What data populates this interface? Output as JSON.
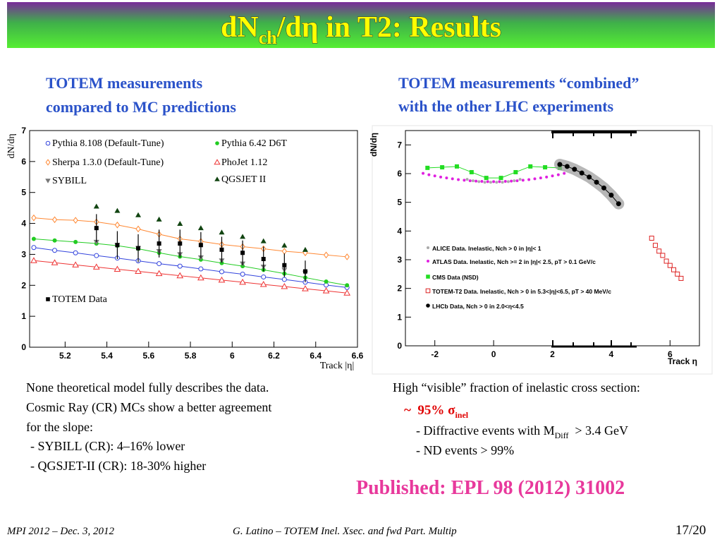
{
  "header": {
    "title": {
      "main": "dN",
      "sub": "ch",
      "rest": "/dη in T2: Results"
    }
  },
  "left_heading": [
    "TOTEM measurements",
    "compared to MC predictions"
  ],
  "right_heading": [
    "TOTEM measurements “combined”",
    "with the other LHC experiments"
  ],
  "chart_data": [
    {
      "type": "scatter",
      "xlabel": "Track |η|",
      "ylabel": "dN/dη",
      "xlim": [
        5.03,
        6.6
      ],
      "ylim": [
        0,
        7
      ],
      "xticks": [
        5.2,
        5.4,
        5.6,
        5.8,
        6,
        6.2,
        6.4,
        6.6
      ],
      "yticks": [
        0,
        1,
        2,
        3,
        4,
        5,
        6,
        7
      ],
      "series": [
        {
          "name": "Pythia 8.108 (Default-Tune)",
          "color": "#3344dd",
          "marker": "circle-open",
          "line": true,
          "x": [
            5.05,
            5.15,
            5.25,
            5.35,
            5.45,
            5.55,
            5.65,
            5.75,
            5.85,
            5.95,
            6.05,
            6.15,
            6.25,
            6.35,
            6.45,
            6.55
          ],
          "values": [
            3.22,
            3.13,
            3.05,
            2.96,
            2.88,
            2.79,
            2.7,
            2.62,
            2.53,
            2.44,
            2.36,
            2.27,
            2.19,
            2.1,
            2.01,
            1.93
          ]
        },
        {
          "name": "Pythia 6.42 D6T",
          "color": "#22cc22",
          "marker": "circle",
          "line": true,
          "x": [
            5.05,
            5.15,
            5.25,
            5.35,
            5.45,
            5.55,
            5.65,
            5.75,
            5.85,
            5.95,
            6.05,
            6.15,
            6.25,
            6.35,
            6.45,
            6.55
          ],
          "values": [
            3.5,
            3.45,
            3.4,
            3.35,
            3.28,
            3.18,
            3.05,
            2.93,
            2.83,
            2.72,
            2.62,
            2.5,
            2.38,
            2.25,
            2.12,
            2.0
          ]
        },
        {
          "name": "Sherpa 1.3.0 (Default-Tune)",
          "color": "#ff8833",
          "marker": "diamond-open",
          "line": true,
          "x": [
            5.05,
            5.15,
            5.25,
            5.35,
            5.45,
            5.55,
            5.65,
            5.75,
            5.85,
            5.95,
            6.05,
            6.15,
            6.25,
            6.35,
            6.45,
            6.55
          ],
          "values": [
            4.18,
            4.12,
            4.1,
            4.05,
            3.95,
            3.82,
            3.65,
            3.5,
            3.42,
            3.32,
            3.25,
            3.18,
            3.1,
            3.05,
            2.98,
            2.92
          ]
        },
        {
          "name": "PhoJet 1.12",
          "color": "#ee3333",
          "marker": "triangle-open",
          "line": true,
          "x": [
            5.05,
            5.15,
            5.25,
            5.35,
            5.45,
            5.55,
            5.65,
            5.75,
            5.85,
            5.95,
            6.05,
            6.15,
            6.25,
            6.35,
            6.45,
            6.55
          ],
          "values": [
            2.8,
            2.73,
            2.66,
            2.59,
            2.52,
            2.45,
            2.38,
            2.31,
            2.24,
            2.17,
            2.1,
            2.03,
            1.96,
            1.89,
            1.82,
            1.75
          ]
        },
        {
          "name": "SYBILL",
          "color": "#777777",
          "marker": "triangle-down",
          "x": [
            5.35,
            5.45,
            5.55,
            5.65,
            5.75,
            5.85,
            5.95,
            6.05,
            6.15,
            6.25,
            6.35
          ],
          "values": [
            3.4,
            3.3,
            3.2,
            3.1,
            3.0,
            2.9,
            2.8,
            2.7,
            2.6,
            2.5,
            2.4
          ]
        },
        {
          "name": "QGSJET II",
          "color": "#114411",
          "marker": "triangle",
          "x": [
            5.35,
            5.45,
            5.55,
            5.65,
            5.75,
            5.85,
            5.95,
            6.05,
            6.15,
            6.25,
            6.35
          ],
          "values": [
            4.55,
            4.41,
            4.27,
            4.13,
            3.99,
            3.85,
            3.71,
            3.57,
            3.43,
            3.29,
            3.15
          ]
        },
        {
          "name": "TOTEM Data",
          "color": "#000000",
          "marker": "square",
          "x": [
            5.35,
            5.45,
            5.55,
            5.65,
            5.75,
            5.85,
            5.95,
            6.05,
            6.15,
            6.25,
            6.35
          ],
          "values": [
            3.85,
            3.3,
            3.2,
            3.35,
            3.35,
            3.3,
            3.15,
            3.05,
            2.85,
            2.65,
            2.45
          ],
          "errors": [
            0.45,
            0.45,
            0.45,
            0.45,
            0.45,
            0.42,
            0.42,
            0.4,
            0.4,
            0.38,
            0.35
          ]
        }
      ]
    },
    {
      "type": "scatter",
      "xlabel": "Track η",
      "ylabel": "dN/dη",
      "xlim": [
        -3,
        7
      ],
      "ylim": [
        0,
        7.5
      ],
      "xticks": [
        -2,
        0,
        2,
        4,
        6
      ],
      "yticks": [
        0,
        1,
        2,
        3,
        4,
        5,
        6,
        7
      ],
      "series": [
        {
          "name": "ALICE Data. Inelastic, Nch > 0 in |η|< 1",
          "color": "#aaaaaa",
          "marker": "dot",
          "x": [
            -0.9,
            -0.7,
            -0.5,
            -0.3,
            -0.1,
            0.1,
            0.3,
            0.5,
            0.7,
            0.9
          ],
          "values": [
            5.8,
            5.75,
            5.72,
            5.7,
            5.7,
            5.7,
            5.7,
            5.72,
            5.75,
            5.8
          ]
        },
        {
          "name": "ATLAS Data. Inelastic, Nch >= 2 in |η|< 2.5, pT > 0.1 GeV/c",
          "color": "#e020e0",
          "marker": "dot",
          "x": [
            -2.4,
            -2.2,
            -2,
            -1.8,
            -1.6,
            -1.4,
            -1.2,
            -1,
            -0.8,
            -0.6,
            -0.4,
            -0.2,
            0,
            0.2,
            0.4,
            0.6,
            0.8,
            1,
            1.2,
            1.4,
            1.6,
            1.8,
            2,
            2.2,
            2.4
          ],
          "values": [
            6.01,
            5.96,
            5.92,
            5.88,
            5.85,
            5.82,
            5.79,
            5.77,
            5.75,
            5.74,
            5.73,
            5.72,
            5.72,
            5.72,
            5.73,
            5.74,
            5.75,
            5.77,
            5.79,
            5.82,
            5.85,
            5.88,
            5.92,
            5.96,
            6.01
          ]
        },
        {
          "name": "CMS Data (NSD)",
          "color": "#22dd22",
          "marker": "square",
          "line": true,
          "x": [
            -2.25,
            -1.75,
            -1.25,
            -0.75,
            -0.25,
            0.25,
            0.75,
            1.25,
            1.75,
            2.25
          ],
          "values": [
            6.2,
            6.22,
            6.25,
            6.05,
            5.85,
            5.85,
            6.05,
            6.25,
            6.22,
            6.2
          ]
        },
        {
          "name": "TOTEM-T2 Data. Inelastic, Nch > 0 in 5.3<|η|<6.5, pT > 40 MeV/c",
          "color": "#dd2222",
          "marker": "square-open",
          "x": [
            5.375,
            5.5,
            5.625,
            5.75,
            5.875,
            6.0,
            6.125,
            6.25,
            6.375
          ],
          "values": [
            3.75,
            3.5,
            3.3,
            3.15,
            2.95,
            2.8,
            2.65,
            2.5,
            2.35
          ]
        },
        {
          "name": "LHCb Data, Nch > 0 in 2.0<η<4.5",
          "color": "#000000",
          "marker": "circle",
          "line": true,
          "band": true,
          "x": [
            2.25,
            2.5,
            2.75,
            3.0,
            3.25,
            3.5,
            3.75,
            4.0,
            4.25
          ],
          "values": [
            6.32,
            6.25,
            6.15,
            6.02,
            5.88,
            5.7,
            5.5,
            5.25,
            4.95
          ]
        }
      ]
    }
  ],
  "left_text": [
    "None theoretical model fully describes the data.",
    "Cosmic Ray (CR) MCs show a better agreement",
    "for the slope:",
    "- SYBILL (CR): 4–16% lower",
    "- QGSJET-II (CR): 18-30% higher"
  ],
  "right_text": {
    "intro": "High “visible” fraction of inelastic cross section:",
    "fraction": {
      "main": "~  95% σ",
      "sub": "inel"
    },
    "diffractive": {
      "main": "- Diffractive events with M",
      "sub": "Diff",
      "rest": "  > 3.4 GeV"
    },
    "nd": "- ND events > 99%"
  },
  "publication": "Published: EPL 98 (2012) 31002",
  "footer": {
    "left": "MPI 2012 – Dec. 3, 2012",
    "center": "G. Latino – TOTEM  Inel. Xsec. and fwd Part. Multip",
    "right": "17/20"
  }
}
